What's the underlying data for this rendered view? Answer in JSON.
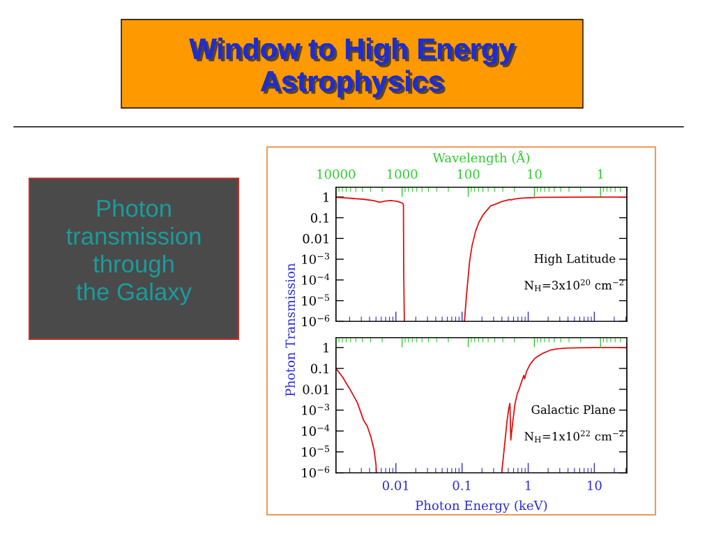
{
  "chart_data": [
    {
      "type": "line",
      "title": "Window to High Energy\nAstrophysics",
      "subtitle": "Photon\ntransmission\nthrough\nthe Galaxy",
      "xlabel": "Wavelength (Å)",
      "ylabel": "Photon Transmission",
      "log": "xy",
      "xlim": [
        10000,
        0.4
      ],
      "xticks": [
        10000,
        1000,
        100,
        10,
        1
      ],
      "ylim": [
        1e-06,
        3
      ],
      "yticks": [
        1,
        0.1,
        0.01,
        {
          "value": 0.001,
          "label": "10$^{−3}$"
        },
        {
          "value": 0.0001,
          "label": "10$^{−4}$"
        },
        {
          "value": 1e-05,
          "label": "10$^{−5}$"
        },
        {
          "value": 1e-06,
          "label": "10$^{−6}$"
        }
      ],
      "annotations": [
        "High Latitude",
        "N$_{H}$=3x10$^{20}$ cm$^{−2}$"
      ],
      "series": [
        {
          "color": "#e01010",
          "x": [
            10000,
            7750,
            5900,
            3870,
            2640,
            2180,
            1820,
            1490,
            1270,
            1170,
            1040,
            984,
            954,
            945,
            925
          ],
          "values": [
            0.95,
            0.92,
            0.86,
            0.78,
            0.66,
            0.56,
            0.64,
            0.68,
            0.64,
            0.61,
            0.54,
            0.5,
            0.42,
            0.0003,
            1e-06
          ]
        },
        {
          "color": "#e01010",
          "x": [
            114,
            105.5,
            100.8,
            95.4,
            87.3,
            77.5,
            68.9,
            58.5,
            45.9,
            37.6,
            30.6,
            23.4,
            22.7,
            20.4,
            16.5,
            13.6,
            9.1,
            4.13,
            1.24,
            0.4
          ],
          "values": [
            1e-06,
            2.4e-05,
            0.00011,
            0.00078,
            0.0047,
            0.022,
            0.061,
            0.15,
            0.37,
            0.47,
            0.61,
            0.76,
            0.72,
            0.79,
            0.87,
            0.9,
            0.95,
            0.98,
            1.0,
            1.0
          ]
        }
      ]
    },
    {
      "type": "line",
      "xlabel": "Photon Energy (keV)",
      "log": "xy",
      "xlim": [
        0.00124,
        31
      ],
      "xticks": [
        0.01,
        0.1,
        1,
        10
      ],
      "ylim": [
        1e-06,
        3
      ],
      "yticks": [
        1,
        0.1,
        0.01,
        {
          "value": 0.001,
          "label": "10$^{−3}$"
        },
        {
          "value": 0.0001,
          "label": "10$^{−4}$"
        },
        {
          "value": 1e-05,
          "label": "10$^{−5}$"
        },
        {
          "value": 1e-06,
          "label": "10$^{−6}$"
        }
      ],
      "annotations": [
        "Galactic Plane",
        "N$_{H}$=1x10$^{22}$ cm$^{−2}$"
      ],
      "series": [
        {
          "color": "#e01010",
          "x": [
            0.00124,
            0.00155,
            0.00201,
            0.00261,
            0.00324,
            0.00369,
            0.00421,
            0.00467,
            0.005,
            0.00508
          ],
          "values": [
            0.1,
            0.04,
            0.0103,
            0.0023,
            0.00033,
            0.00017,
            4.9e-05,
            1.25e-05,
            2.4e-06,
            1e-06
          ]
        },
        {
          "color": "#e01010",
          "x": [
            0.398,
            0.439,
            0.476,
            0.508,
            0.529,
            0.546,
            0.583,
            0.632,
            0.686,
            0.713,
            0.774,
            0.839,
            0.859,
            0.881,
            0.947,
            1.07,
            1.257,
            1.6,
            2.21,
            2.82,
            3.9,
            10,
            31
          ],
          "values": [
            1e-06,
            2e-05,
            0.00026,
            0.0012,
            0.0021,
            3.7e-05,
            0.00026,
            0.002,
            0.0064,
            0.0083,
            0.0178,
            0.038,
            0.046,
            0.032,
            0.073,
            0.158,
            0.3,
            0.5,
            0.77,
            0.88,
            0.95,
            1.0,
            1.0
          ]
        }
      ]
    }
  ]
}
